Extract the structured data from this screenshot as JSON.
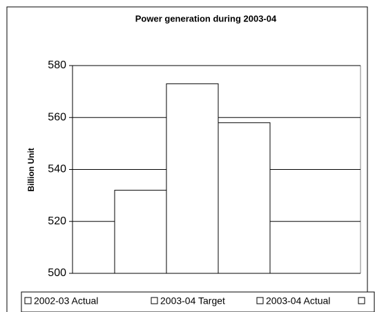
{
  "chart_data": {
    "type": "bar",
    "title": "Power generation during 2003-04",
    "y_label": "Billion Unit",
    "categories": [
      null
    ],
    "series": [
      {
        "name": "2002-03 Actual",
        "color": "#ffffff",
        "values": [
          532
        ]
      },
      {
        "name": "2003-04 Target",
        "color": "#ffffff",
        "values": [
          573
        ]
      },
      {
        "name": "2003-04 Actual",
        "color": "#ffffff",
        "values": [
          558
        ]
      }
    ],
    "ylim": [
      500,
      580
    ],
    "yticks": [
      500,
      520,
      540,
      560,
      580
    ],
    "grid": true
  }
}
